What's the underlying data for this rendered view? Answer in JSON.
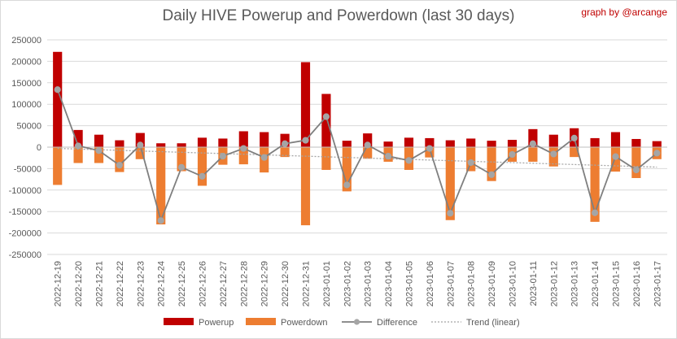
{
  "title": "Daily HIVE Powerup and Powerdown (last 30 days)",
  "credit": "graph by @arcange",
  "colors": {
    "powerup": "#c00000",
    "powerdown": "#ed7d31",
    "difference": "#7f7f7f",
    "difference_marker": "#a5a5a5",
    "trend": "#a5a5a5",
    "grid": "#d9d9d9",
    "axis_text": "#595959"
  },
  "chart_data": {
    "type": "bar",
    "title": "Daily HIVE Powerup and Powerdown (last 30 days)",
    "xlabel": "",
    "ylabel": "",
    "ylim": [
      -250000,
      250000
    ],
    "yticks": [
      250000,
      200000,
      150000,
      100000,
      50000,
      0,
      -50000,
      -100000,
      -150000,
      -200000,
      -250000
    ],
    "ytick_labels": [
      "250000",
      "200000",
      "150000",
      "100000",
      "50000",
      "0",
      "-50000",
      "-100000",
      "-150000",
      "-200000",
      "-250000"
    ],
    "grid": true,
    "legend_position": "bottom",
    "categories": [
      "2022-12-19",
      "2022-12-20",
      "2022-12-21",
      "2022-12-22",
      "2022-12-23",
      "2022-12-24",
      "2022-12-25",
      "2022-12-26",
      "2022-12-27",
      "2022-12-28",
      "2022-12-29",
      "2022-12-30",
      "2022-12-31",
      "2023-01-01",
      "2023-01-02",
      "2023-01-03",
      "2023-01-04",
      "2023-01-05",
      "2023-01-06",
      "2023-01-07",
      "2023-01-08",
      "2023-01-09",
      "2023-01-10",
      "2023-01-11",
      "2023-01-12",
      "2023-01-13",
      "2023-01-14",
      "2023-01-15",
      "2023-01-16",
      "2023-01-17"
    ],
    "series": [
      {
        "name": "Powerup",
        "kind": "bar",
        "values": [
          222000,
          40000,
          29000,
          16000,
          33000,
          9000,
          9000,
          22000,
          20000,
          37000,
          35000,
          31000,
          198000,
          124000,
          15000,
          32000,
          13000,
          22000,
          21000,
          16000,
          20000,
          15000,
          17000,
          42000,
          29000,
          44000,
          21000,
          35000,
          19000,
          14000
        ]
      },
      {
        "name": "Powerdown",
        "kind": "bar",
        "values": [
          -88000,
          -37000,
          -37000,
          -58000,
          -28000,
          -180000,
          -56000,
          -90000,
          -41000,
          -40000,
          -59000,
          -23000,
          -182000,
          -53000,
          -103000,
          -27000,
          -34000,
          -53000,
          -24000,
          -170000,
          -56000,
          -79000,
          -34000,
          -34000,
          -45000,
          -23000,
          -174000,
          -57000,
          -72000,
          -28000
        ]
      },
      {
        "name": "Difference",
        "kind": "line",
        "values": [
          134000,
          3000,
          -8000,
          -42000,
          5000,
          -171000,
          -47000,
          -68000,
          -21000,
          -3000,
          -24000,
          8000,
          16000,
          71000,
          -88000,
          5000,
          -21000,
          -31000,
          -3000,
          -154000,
          -36000,
          -64000,
          -17000,
          8000,
          -16000,
          21000,
          -153000,
          -22000,
          -53000,
          -14000
        ]
      },
      {
        "name": "Trend (linear)",
        "kind": "trend",
        "values": [
          -3000,
          -4500,
          -6000,
          -7500,
          -9000,
          -10500,
          -12000,
          -13500,
          -15000,
          -16500,
          -18000,
          -19500,
          -21000,
          -22500,
          -24000,
          -25500,
          -27000,
          -28500,
          -30000,
          -31500,
          -33000,
          -34500,
          -36000,
          -37500,
          -39000,
          -40500,
          -42000,
          -43500,
          -45000,
          -46500
        ]
      }
    ]
  }
}
